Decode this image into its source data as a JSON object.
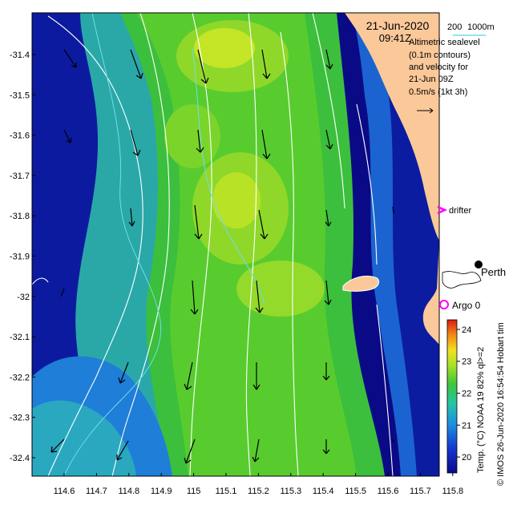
{
  "header": {
    "date": "21-Jun-2020",
    "time": "09:41Z",
    "depth_labels": [
      "200",
      "1000m"
    ],
    "legend_lines": [
      "Altimetric sealevel",
      "(0.1m contours)",
      "and velocity for",
      "21-Jun 09Z"
    ],
    "velocity_scale": "0.5m/s (1kt 3h)"
  },
  "markers": {
    "drifter": "drifter",
    "argo": "Argo 0",
    "city": "Perth",
    "hobart": "Hobart tim"
  },
  "axes": {
    "x_ticks": [
      "114.6",
      "114.7",
      "114.8",
      "114.9",
      "115",
      "115.1",
      "115.2",
      "115.3",
      "115.4",
      "115.5",
      "115.6",
      "115.7",
      "115.8"
    ],
    "y_ticks": [
      "-31.4",
      "-31.5",
      "-31.6",
      "-31.7",
      "-31.8",
      "-31.9",
      "-32",
      "-32.1",
      "-32.2",
      "-32.3",
      "-32.4"
    ]
  },
  "colorbar": {
    "title": "Temp. (°C) NOAA 19 82% ql>=2",
    "ticks": [
      "24",
      "23",
      "22",
      "21",
      "20"
    ],
    "min": 19.5,
    "max": 24.3
  },
  "credit": "© IMOS 26-Jun-2020 16:54:54 Hobart tim",
  "colors": {
    "land": "#fbc89a",
    "deep_blue": "#0a0a86",
    "contour": "#ffffff",
    "shelf_line": "#66d9e8",
    "marker": "#ff00ff"
  }
}
